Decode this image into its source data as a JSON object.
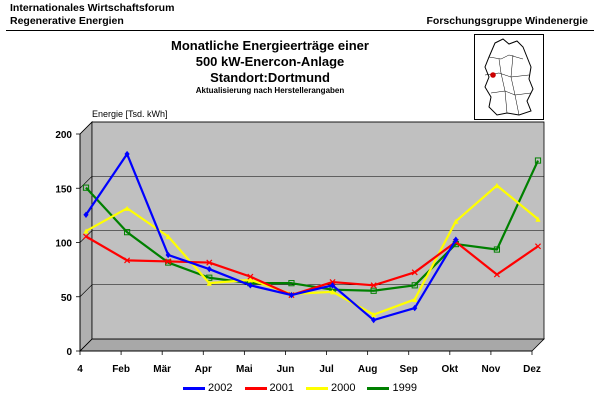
{
  "header": {
    "org_line1": "Internationales Wirtschaftsforum",
    "org_line2": "Regenerative Energien",
    "group": "Forschungsgruppe Windenergie"
  },
  "title": {
    "line1": "Monatliche Energieerträge einer",
    "line2": "500 kW-Enercon-Anlage",
    "line3": "Standort:Dortmund",
    "note": "Aktualisierung nach Herstellerangaben"
  },
  "colors": {
    "plot_bg": "#c0c0c0",
    "frame_bg": "#ffffff",
    "grid": "#000000"
  },
  "chart_data": {
    "type": "line",
    "ylabel": "Energie [Tsd. kWh]",
    "xlabel": "",
    "ylim": [
      0,
      200
    ],
    "yticks": [
      0,
      50,
      100,
      150,
      200
    ],
    "grid": true,
    "legend_position": "bottom",
    "categories": [
      "4",
      "Feb",
      "Mär",
      "Apr",
      "Mai",
      "Jun",
      "Jul",
      "Aug",
      "Sep",
      "Okt",
      "Nov",
      "Dez"
    ],
    "series": [
      {
        "name": "2002",
        "color": "#0000ff",
        "marker": "diamond",
        "values": [
          120,
          176,
          83,
          70,
          55,
          46,
          55,
          23,
          34,
          97,
          null,
          null
        ]
      },
      {
        "name": "2001",
        "color": "#ff0000",
        "marker": "x",
        "values": [
          100,
          78,
          77,
          76,
          63,
          46,
          58,
          55,
          67,
          95,
          65,
          91
        ]
      },
      {
        "name": "2000",
        "color": "#ffff00",
        "marker": "triangle",
        "values": [
          105,
          126,
          100,
          57,
          60,
          47,
          49,
          28,
          42,
          114,
          147,
          116
        ]
      },
      {
        "name": "1999",
        "color": "#008000",
        "marker": "square",
        "values": [
          145,
          104,
          76,
          62,
          57,
          57,
          51,
          50,
          55,
          93,
          88,
          170
        ]
      }
    ]
  }
}
